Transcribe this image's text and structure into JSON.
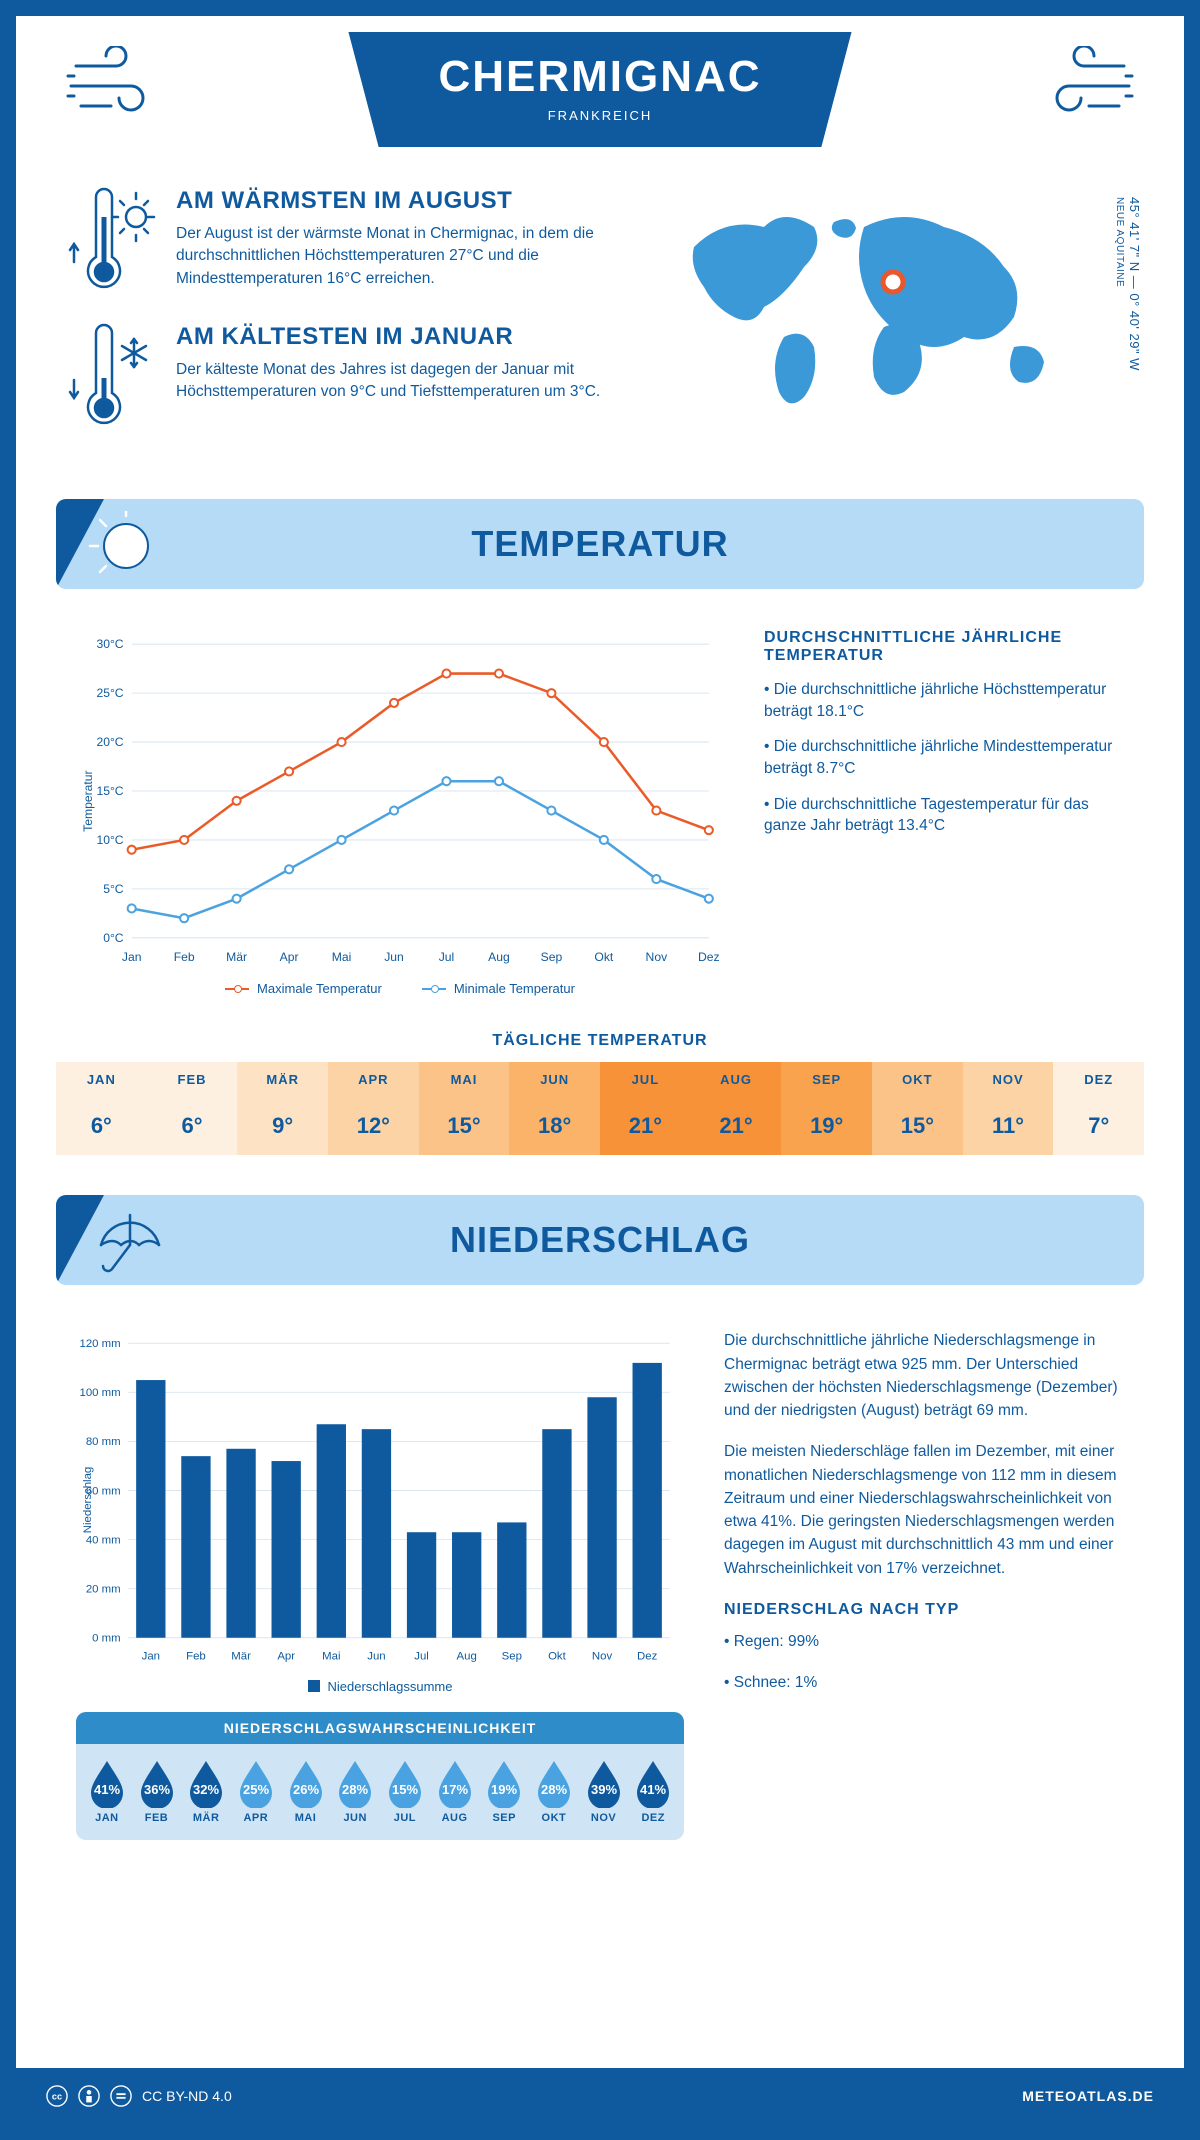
{
  "header": {
    "city": "CHERMIGNAC",
    "country": "FRANKREICH",
    "coords_line": "45° 41' 7\" N — 0° 40' 29\" W",
    "region": "NEUE AQUITAINE"
  },
  "summary": {
    "warm_title": "AM WÄRMSTEN IM AUGUST",
    "warm_body": "Der August ist der wärmste Monat in Chermignac, in dem die durchschnittlichen Höchsttemperaturen 27°C und die Mindesttemperaturen 16°C erreichen.",
    "cold_title": "AM KÄLTESTEN IM JANUAR",
    "cold_body": "Der kälteste Monat des Jahres ist dagegen der Januar mit Höchsttemperaturen von 9°C und Tiefsttemperaturen um 3°C."
  },
  "sections": {
    "temp_header": "TEMPERATUR",
    "precip_header": "NIEDERSCHLAG"
  },
  "months": [
    "Jan",
    "Feb",
    "Mär",
    "Apr",
    "Mai",
    "Jun",
    "Jul",
    "Aug",
    "Sep",
    "Okt",
    "Nov",
    "Dez"
  ],
  "months_uc": [
    "JAN",
    "FEB",
    "MÄR",
    "APR",
    "MAI",
    "JUN",
    "JUL",
    "AUG",
    "SEP",
    "OKT",
    "NOV",
    "DEZ"
  ],
  "temp_chart": {
    "max_series": [
      9,
      10,
      14,
      17,
      20,
      24,
      27,
      27,
      25,
      20,
      13,
      11
    ],
    "min_series": [
      3,
      2,
      4,
      7,
      10,
      13,
      16,
      16,
      13,
      10,
      6,
      4
    ],
    "max_color": "#e95c2a",
    "min_color": "#4aa3e0",
    "grid_color": "#d9e6f0",
    "axis_color": "#0f5a9e",
    "ylabel": "Temperatur",
    "ymin": 0,
    "ymax": 30,
    "ystep": 5,
    "legend_max": "Maximale Temperatur",
    "legend_min": "Minimale Temperatur"
  },
  "temp_notes": {
    "heading": "DURCHSCHNITTLICHE JÄHRLICHE TEMPERATUR",
    "l1": "• Die durchschnittliche jährliche Höchsttemperatur beträgt 18.1°C",
    "l2": "• Die durchschnittliche jährliche Mindesttemperatur beträgt 8.7°C",
    "l3": "• Die durchschnittliche Tagestemperatur für das ganze Jahr beträgt 13.4°C"
  },
  "daily": {
    "title": "TÄGLICHE TEMPERATUR",
    "values": [
      "6°",
      "6°",
      "9°",
      "12°",
      "15°",
      "18°",
      "21°",
      "21°",
      "19°",
      "15°",
      "11°",
      "7°"
    ],
    "bg_colors": [
      "#fdf0e1",
      "#fdf0e1",
      "#fde2c4",
      "#fcd3a5",
      "#fbc388",
      "#fbb36a",
      "#f89238",
      "#f89238",
      "#faa34e",
      "#fbc388",
      "#fcd3a5",
      "#fdf0e1"
    ],
    "text_color": "#0f5a9e"
  },
  "precip_chart": {
    "values": [
      105,
      74,
      77,
      72,
      87,
      85,
      43,
      43,
      47,
      85,
      98,
      112
    ],
    "bar_color": "#0f5a9e",
    "grid_color": "#d9e6f0",
    "axis_color": "#0f5a9e",
    "ylabel": "Niederschlag",
    "ymin": 0,
    "ymax": 120,
    "ystep": 20,
    "legend": "Niederschlagssumme"
  },
  "precip_text": {
    "p1": "Die durchschnittliche jährliche Niederschlagsmenge in Chermignac beträgt etwa 925 mm. Der Unterschied zwischen der höchsten Niederschlagsmenge (Dezember) und der niedrigsten (August) beträgt 69 mm.",
    "p2": "Die meisten Niederschläge fallen im Dezember, mit einer monatlichen Niederschlagsmenge von 112 mm in diesem Zeitraum und einer Niederschlagswahrscheinlichkeit von etwa 41%. Die geringsten Niederschlagsmengen werden dagegen im August mit durchschnittlich 43 mm und einer Wahrscheinlichkeit von 17% verzeichnet.",
    "type_heading": "NIEDERSCHLAG NACH TYP",
    "type1": "• Regen: 99%",
    "type2": "• Schnee: 1%"
  },
  "precip_prob": {
    "title": "NIEDERSCHLAGSWAHRSCHEINLICHKEIT",
    "values": [
      41,
      36,
      32,
      25,
      26,
      28,
      15,
      17,
      19,
      28,
      39,
      41
    ],
    "drop_dark": "#0f5a9e",
    "drop_light": "#4aa3e0"
  },
  "footer": {
    "license": "CC BY-ND 4.0",
    "site": "METEOATLAS.DE"
  }
}
